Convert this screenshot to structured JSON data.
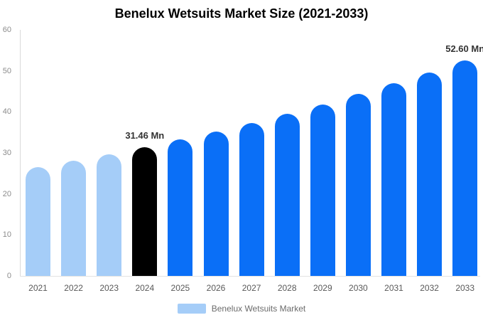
{
  "header": {
    "title": "Benelux Wetsuits Market Size (2021-2033)"
  },
  "legend": {
    "label": "Benelux Wetsuits Market",
    "swatch_color": "#a5cdf8"
  },
  "colors": {
    "historical_bar": "#a5cdf8",
    "base_year_bar": "#000000",
    "forecast_bar": "#0a6ff7",
    "axis_line": "#d9d9d9",
    "y_tick_text": "#8c8c8c",
    "x_tick_text": "#595959",
    "value_label_text": "#333333",
    "background": "#ffffff"
  },
  "chart_data": {
    "type": "bar",
    "title": "Benelux Wetsuits Market Size (2021-2033)",
    "categories": [
      "2021",
      "2022",
      "2023",
      "2024",
      "2025",
      "2026",
      "2027",
      "2028",
      "2029",
      "2030",
      "2031",
      "2032",
      "2033"
    ],
    "values": [
      26.51,
      28.07,
      29.71,
      31.46,
      33.31,
      35.27,
      37.34,
      39.54,
      41.86,
      44.32,
      46.93,
      49.68,
      52.6
    ],
    "unit": "Mn",
    "bar_colors": [
      "#a5cdf8",
      "#a5cdf8",
      "#a5cdf8",
      "#000000",
      "#0a6ff7",
      "#0a6ff7",
      "#0a6ff7",
      "#0a6ff7",
      "#0a6ff7",
      "#0a6ff7",
      "#0a6ff7",
      "#0a6ff7",
      "#0a6ff7"
    ],
    "value_labels": {
      "2024": "31.46 Mn",
      "2033": "52.60 Mn"
    },
    "xlabel": "",
    "ylabel": "",
    "ylim": [
      0,
      60
    ],
    "y_ticks": [
      0,
      10,
      20,
      30,
      40,
      50,
      60
    ],
    "grid": false,
    "legend_entries": [
      "Benelux Wetsuits Market"
    ],
    "legend_position": "bottom"
  }
}
